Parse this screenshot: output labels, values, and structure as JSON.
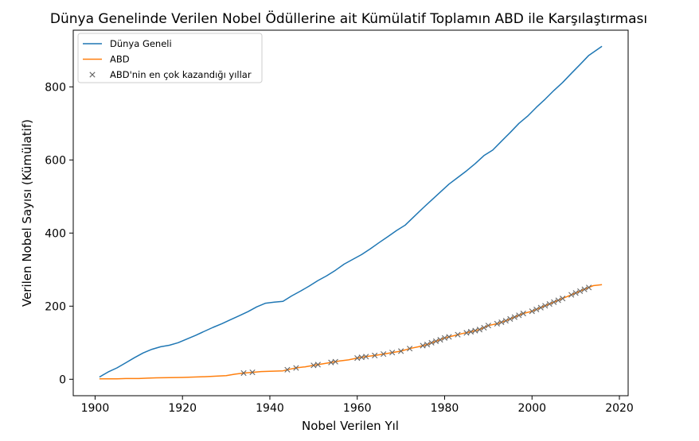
{
  "chart_data": {
    "type": "line",
    "title": "Dünya Genelinde Verilen Nobel Ödüllerine ait Kümülatif Toplamın ABD ile Karşılaştırması",
    "xlabel": "Nobel Verilen Yıl",
    "ylabel": "Verilen Nobel Sayısı (Kümülatif)",
    "xlim": [
      1895,
      2022
    ],
    "ylim": [
      -45,
      955
    ],
    "xticks": [
      1900,
      1920,
      1940,
      1960,
      1980,
      2000,
      2020
    ],
    "yticks": [
      0,
      200,
      400,
      600,
      800
    ],
    "grid": false,
    "legend_placement": "top-left",
    "colors": {
      "world": "#1f77b4",
      "usa": "#ff7f0e",
      "marker": "#666666"
    },
    "series": [
      {
        "name": "Dünya Geneli",
        "type": "line",
        "x": [
          1901,
          1903,
          1905,
          1907,
          1909,
          1911,
          1913,
          1915,
          1917,
          1919,
          1921,
          1923,
          1925,
          1927,
          1929,
          1931,
          1933,
          1935,
          1937,
          1939,
          1941,
          1943,
          1945,
          1947,
          1949,
          1951,
          1953,
          1955,
          1957,
          1959,
          1961,
          1963,
          1965,
          1967,
          1969,
          1971,
          1973,
          1975,
          1977,
          1979,
          1981,
          1983,
          1985,
          1987,
          1989,
          1991,
          1993,
          1995,
          1997,
          1999,
          2001,
          2003,
          2005,
          2007,
          2009,
          2011,
          2013,
          2016
        ],
        "y": [
          6,
          20,
          31,
          45,
          59,
          72,
          82,
          89,
          93,
          100,
          110,
          120,
          131,
          142,
          152,
          163,
          174,
          185,
          198,
          208,
          211,
          213,
          228,
          241,
          255,
          270,
          283,
          298,
          315,
          328,
          341,
          357,
          374,
          390,
          407,
          422,
          445,
          468,
          490,
          512,
          534,
          552,
          570,
          590,
          612,
          627,
          651,
          675,
          700,
          720,
          744,
          766,
          790,
          812,
          837,
          861,
          886,
          911
        ]
      },
      {
        "name": "ABD",
        "type": "line",
        "x": [
          1901,
          1905,
          1907,
          1910,
          1912,
          1914,
          1920,
          1925,
          1930,
          1932,
          1934,
          1936,
          1938,
          1940,
          1943,
          1944,
          1946,
          1948,
          1950,
          1952,
          1954,
          1956,
          1958,
          1960,
          1962,
          1964,
          1966,
          1968,
          1970,
          1972,
          1974,
          1976,
          1978,
          1980,
          1982,
          1984,
          1986,
          1988,
          1990,
          1992,
          1994,
          1996,
          1998,
          2000,
          2002,
          2004,
          2006,
          2008,
          2010,
          2012,
          2014,
          2016
        ],
        "y": [
          1,
          1,
          2,
          2,
          3,
          4,
          5,
          7,
          10,
          14,
          17,
          19,
          21,
          22,
          23,
          26,
          31,
          34,
          38,
          42,
          46,
          50,
          53,
          58,
          62,
          65,
          69,
          73,
          77,
          84,
          89,
          95,
          104,
          113,
          119,
          125,
          130,
          136,
          147,
          152,
          160,
          170,
          180,
          186,
          196,
          206,
          216,
          226,
          236,
          246,
          256,
          259
        ]
      },
      {
        "name": "ABD'nin en çok kazandığı yıllar",
        "type": "scatter",
        "marker": "x",
        "x": [
          1934,
          1936,
          1944,
          1946,
          1950,
          1951,
          1954,
          1955,
          1960,
          1961,
          1962,
          1964,
          1966,
          1968,
          1970,
          1972,
          1975,
          1976,
          1977,
          1978,
          1979,
          1980,
          1981,
          1983,
          1985,
          1986,
          1987,
          1988,
          1989,
          1990,
          1992,
          1993,
          1994,
          1995,
          1996,
          1997,
          1998,
          2000,
          2001,
          2002,
          2003,
          2004,
          2005,
          2006,
          2007,
          2009,
          2010,
          2011,
          2012,
          2013
        ],
        "y": [
          17,
          19,
          26,
          31,
          38,
          40,
          46,
          48,
          58,
          60,
          62,
          65,
          69,
          73,
          77,
          84,
          92,
          95,
          100,
          104,
          108,
          113,
          116,
          122,
          127,
          130,
          133,
          136,
          141,
          147,
          152,
          156,
          160,
          165,
          170,
          175,
          180,
          186,
          191,
          196,
          201,
          206,
          211,
          216,
          221,
          231,
          236,
          241,
          246,
          251
        ]
      }
    ]
  }
}
